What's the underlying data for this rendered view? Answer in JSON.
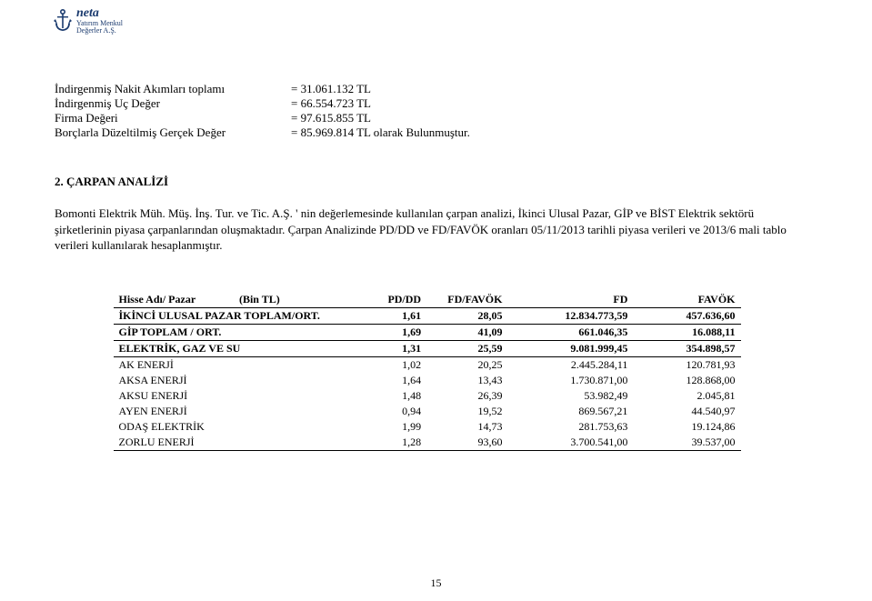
{
  "logo": {
    "brand": "neta",
    "sub1": "Yatırım Menkul",
    "sub2": "Değerler A.Ş.",
    "color": "#1a3a6e"
  },
  "kv": [
    {
      "label": "İndirgenmiş Nakit Akımları toplamı",
      "value": "= 31.061.132 TL"
    },
    {
      "label": "İndirgenmiş Uç Değer",
      "value": "= 66.554.723 TL"
    },
    {
      "label": "Firma Değeri",
      "value": "= 97.615.855 TL"
    },
    {
      "label": "Borçlarla Düzeltilmiş Gerçek Değer",
      "value": "= 85.969.814 TL olarak Bulunmuştur."
    }
  ],
  "section_heading": "2. ÇARPAN ANALİZİ",
  "body_text": "Bomonti Elektrik Müh. Müş. İnş. Tur. ve Tic. A.Ş. ' nin değerlemesinde kullanılan çarpan analizi, İkinci Ulusal Pazar, GİP ve BİST Elektrik sektörü şirketlerinin piyasa çarpanlarından oluşmaktadır. Çarpan Analizinde PD/DD ve FD/FAVÖK oranları 05/11/2013 tarihli piyasa verileri ve 2013/6 mali tablo verileri kullanılarak hesaplanmıştır.",
  "table": {
    "header_left_a": "Hisse Adı/ Pazar",
    "header_left_b": "(Bin TL)",
    "columns": [
      "PD/DD",
      "FD/FAVÖK",
      "FD",
      "FAVÖK"
    ],
    "rows": [
      {
        "name": "İKİNCİ ULUSAL PAZAR TOPLAM/ORT.",
        "c": [
          "1,61",
          "28,05",
          "12.834.773,59",
          "457.636,60"
        ],
        "bold": true,
        "underline": true
      },
      {
        "name": "GİP TOPLAM / ORT.",
        "c": [
          "1,69",
          "41,09",
          "661.046,35",
          "16.088,11"
        ],
        "bold": true,
        "underline": true
      },
      {
        "name": "ELEKTRİK, GAZ VE SU",
        "c": [
          "1,31",
          "25,59",
          "9.081.999,45",
          "354.898,57"
        ],
        "bold": true,
        "underline": true
      },
      {
        "name": "AK ENERJİ",
        "c": [
          "1,02",
          "20,25",
          "2.445.284,11",
          "120.781,93"
        ],
        "bold": false,
        "underline": false
      },
      {
        "name": "AKSA ENERJİ",
        "c": [
          "1,64",
          "13,43",
          "1.730.871,00",
          "128.868,00"
        ],
        "bold": false,
        "underline": false
      },
      {
        "name": "AKSU ENERJİ",
        "c": [
          "1,48",
          "26,39",
          "53.982,49",
          "2.045,81"
        ],
        "bold": false,
        "underline": false
      },
      {
        "name": "AYEN ENERJİ",
        "c": [
          "0,94",
          "19,52",
          "869.567,21",
          "44.540,97"
        ],
        "bold": false,
        "underline": false
      },
      {
        "name": "ODAŞ ELEKTRİK",
        "c": [
          "1,99",
          "14,73",
          "281.753,63",
          "19.124,86"
        ],
        "bold": false,
        "underline": false
      },
      {
        "name": "ZORLU ENERJİ",
        "c": [
          "1,28",
          "93,60",
          "3.700.541,00",
          "39.537,00"
        ],
        "bold": false,
        "underline": true
      }
    ]
  },
  "page_number": "15"
}
